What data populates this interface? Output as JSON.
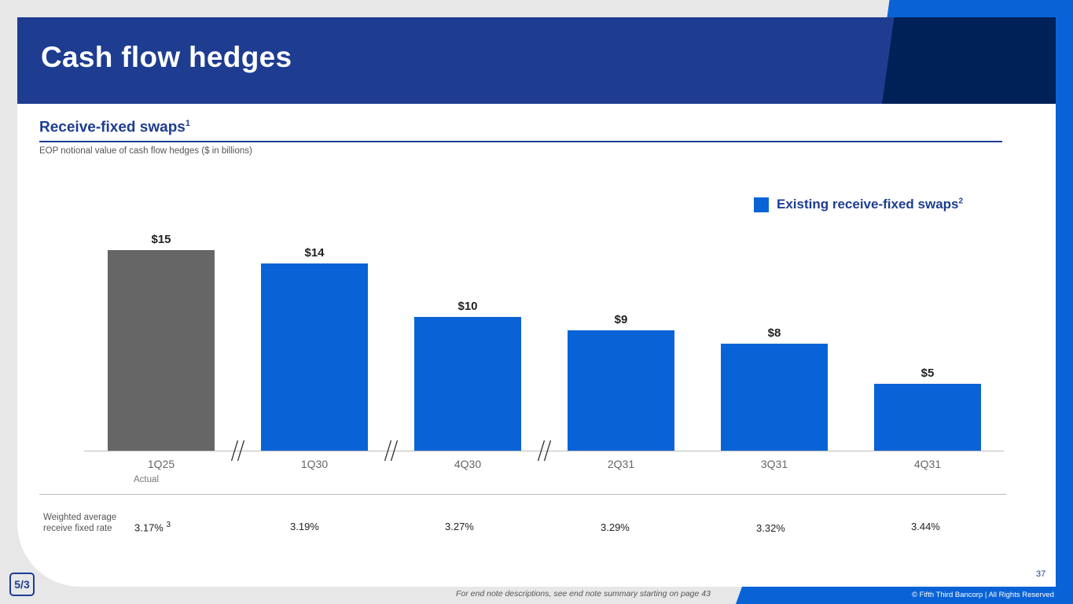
{
  "page": {
    "title": "Cash flow hedges",
    "subtitle": "Receive-fixed swaps",
    "subtitle_note": "1",
    "caption": "EOP notional value of cash flow hedges ($ in billions)",
    "actual_label": "Actual",
    "rate_label": "Weighted average receive fixed rate",
    "rates": [
      "3.17%",
      "3.19%",
      "3.27%",
      "3.29%",
      "3.32%",
      "3.44%"
    ],
    "first_rate_note": "3",
    "page_number": "37",
    "logo_text": "5/3",
    "endnote": "For end note descriptions, see end note summary starting on page 43",
    "copyright": "© Fifth Third Bancorp | All Rights Reserved"
  },
  "colors": {
    "header": "#1e3d91",
    "accent": "#0a63d6",
    "actual_bar": "#666666",
    "forecast_bar": "#0a63d6"
  },
  "chart_data": {
    "type": "bar",
    "title": "Receive-fixed swaps",
    "ylabel": "EOP notional value of cash flow hedges ($ in billions)",
    "categories": [
      "1Q25",
      "1Q30",
      "4Q30",
      "2Q31",
      "3Q31",
      "4Q31"
    ],
    "values": [
      15,
      14,
      10,
      9,
      8,
      5
    ],
    "data_labels": [
      "$15",
      "$14",
      "$10",
      "$9",
      "$8",
      "$5"
    ],
    "bar_kind": [
      "actual",
      "forecast",
      "forecast",
      "forecast",
      "forecast",
      "forecast"
    ],
    "axis_breaks_after": [
      "1Q25",
      "1Q30",
      "4Q30"
    ],
    "ylim": [
      0,
      15
    ],
    "legend": {
      "label": "Existing receive-fixed swaps",
      "note": "2",
      "placement": "top-right"
    }
  }
}
